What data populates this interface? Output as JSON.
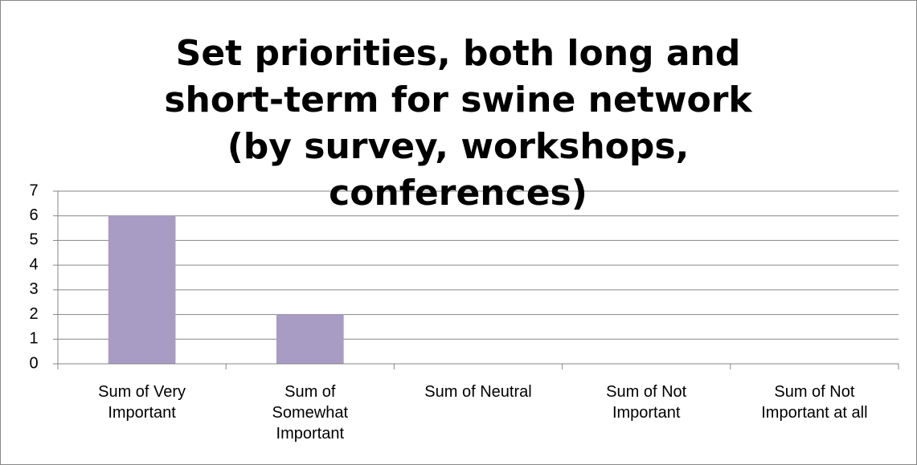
{
  "chart_data": {
    "type": "bar",
    "title": "Set priorities, both long and short-term for swine network (by survey, workshops, conferences)",
    "categories": [
      "Sum of Very Important",
      "Sum of Somewhat Important",
      "Sum of Neutral",
      "Sum of Not Important",
      "Sum of Not Important at all"
    ],
    "values": [
      6,
      2,
      0,
      0,
      0
    ],
    "color": "#a89bc4",
    "ylim": [
      0,
      7
    ],
    "yticks": [
      0,
      1,
      2,
      3,
      4,
      5,
      6,
      7
    ],
    "grid": true
  }
}
